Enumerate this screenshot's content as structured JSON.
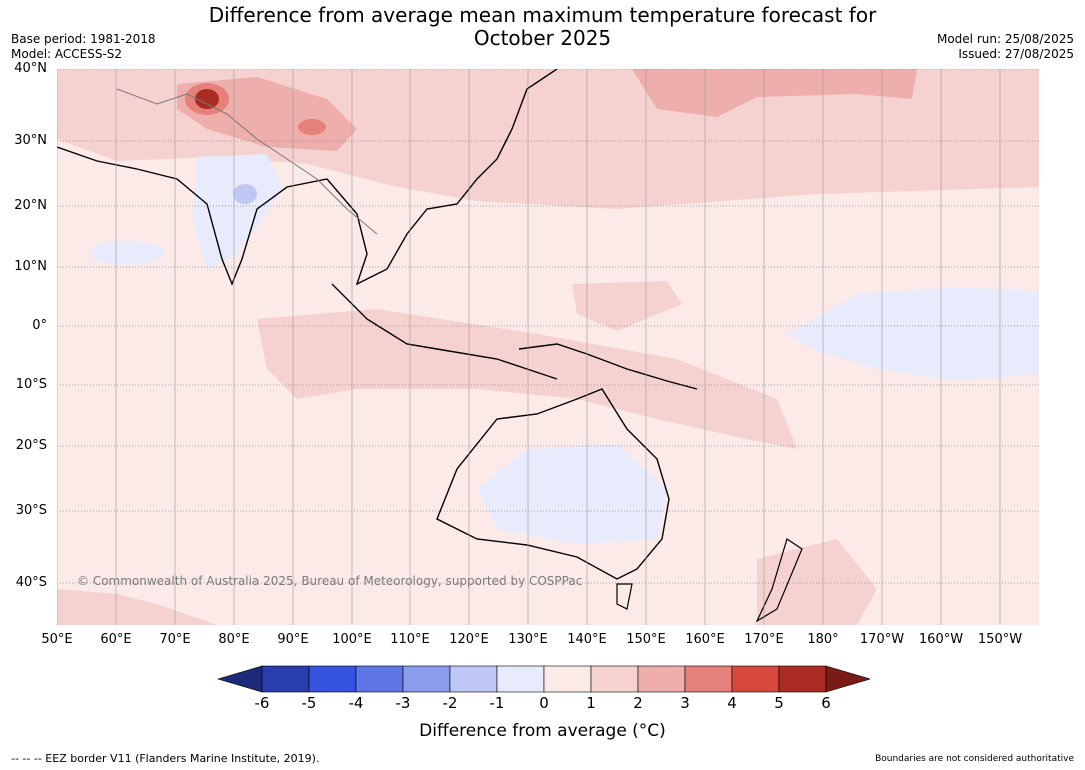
{
  "title": "Difference from average mean maximum temperature forecast for October 2025",
  "title_line1": "Difference from average mean maximum temperature forecast for",
  "title_line2": "October 2025",
  "meta_left": {
    "base_period": "Base period: 1981-2018",
    "model": "Model: ACCESS-S2"
  },
  "meta_right": {
    "model_run": "Model run: 25/08/2025",
    "issued": "Issued: 27/08/2025"
  },
  "latitude_labels": [
    "40°N",
    "30°N",
    "20°N",
    "10°N",
    "0°",
    "10°S",
    "20°S",
    "30°S",
    "40°S"
  ],
  "longitude_labels": [
    "50°E",
    "60°E",
    "70°E",
    "80°E",
    "90°E",
    "100°E",
    "110°E",
    "120°E",
    "130°E",
    "140°E",
    "150°E",
    "160°E",
    "170°E",
    "180°",
    "170°W",
    "160°W",
    "150°W"
  ],
  "credit": "© Commonwealth of Australia 2025, Bureau of Meteorology, supported by COSPPac",
  "colorbar": {
    "ticks": [
      "-6",
      "-5",
      "-4",
      "-3",
      "-2",
      "-1",
      "0",
      "1",
      "2",
      "3",
      "4",
      "5",
      "6"
    ],
    "colors": [
      "#1b2a7a",
      "#2a3db0",
      "#3453e0",
      "#5f76e6",
      "#8a9cec",
      "#bfc8f4",
      "#e7ebfb",
      "#fceae8",
      "#f5d2d0",
      "#eeaeab",
      "#e5807a",
      "#d8493d",
      "#aa2b22",
      "#7a1c15"
    ],
    "label": "Difference from average (°C)"
  },
  "footer_left": "-- -- -- EEZ border V11 (Flanders Marine Institute, 2019).",
  "footer_right": "Boundaries are not considered authoritative"
}
